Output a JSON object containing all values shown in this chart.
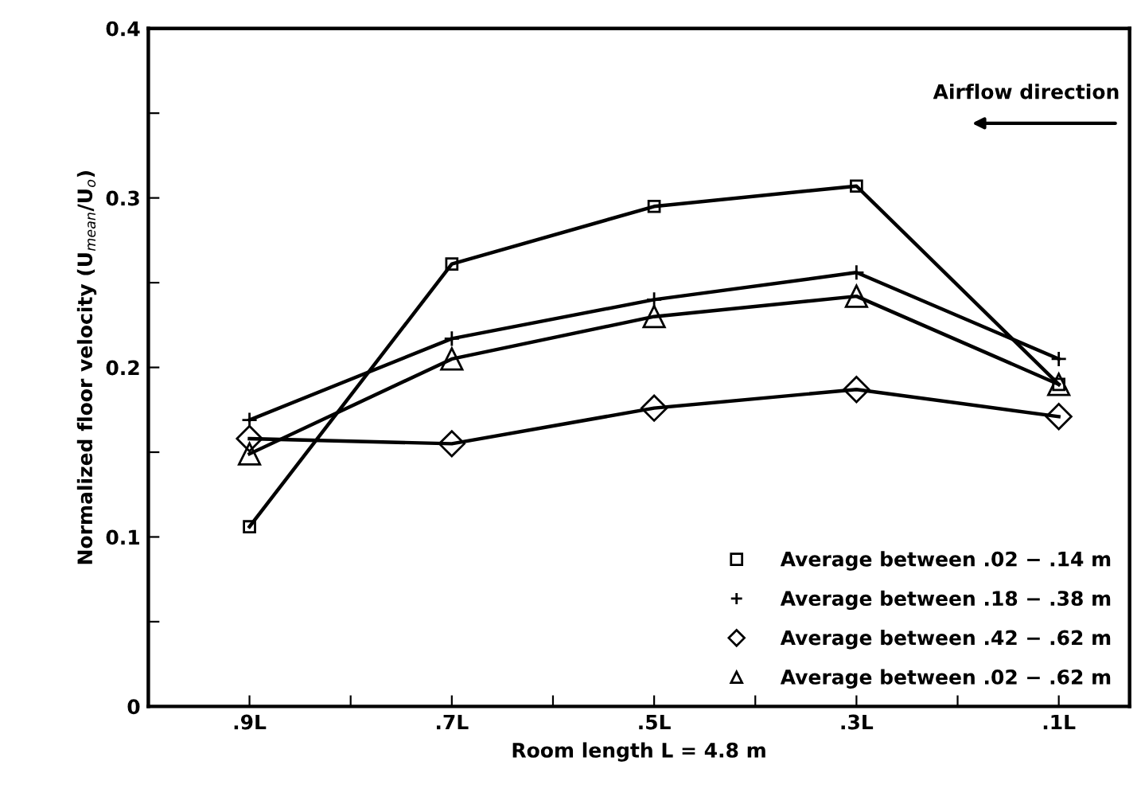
{
  "chart_data": {
    "type": "line",
    "xlabel": "Room length L = 4.8 m",
    "ylabel": "Normalized floor velocity (U$_{mean}$/U$_{o}$)",
    "annotations": [
      "Airflow direction"
    ],
    "x": [
      0.9,
      0.7,
      0.5,
      0.3,
      0.1
    ],
    "xlim": [
      1.0,
      0.03
    ],
    "xticks": [
      {
        "value": 0.9,
        "label": ".9L"
      },
      {
        "value": 0.8,
        "label": null
      },
      {
        "value": 0.7,
        "label": ".7L"
      },
      {
        "value": 0.6,
        "label": null
      },
      {
        "value": 0.5,
        "label": ".5L"
      },
      {
        "value": 0.4,
        "label": null
      },
      {
        "value": 0.3,
        "label": ".3L"
      },
      {
        "value": 0.2,
        "label": null
      },
      {
        "value": 0.1,
        "label": ".1L"
      }
    ],
    "ylim": [
      0,
      0.4
    ],
    "yticks": [
      0,
      {
        "value": 0.05,
        "label": null
      },
      0.1,
      {
        "value": 0.15,
        "label": null
      },
      0.2,
      {
        "value": 0.25,
        "label": null
      },
      0.3,
      {
        "value": 0.35,
        "label": null
      },
      0.4
    ],
    "grid": false,
    "legend": "bottom right",
    "line_style": "solid",
    "series": [
      {
        "name": "Average between .02 − .14 m",
        "color": "#000000",
        "marker": "square",
        "values": [
          0.106,
          0.261,
          0.295,
          0.307,
          0.19
        ]
      },
      {
        "name": "Average between .18 − .38 m",
        "color": "#000000",
        "marker": "cross",
        "values": [
          0.169,
          0.217,
          0.24,
          0.256,
          0.205
        ]
      },
      {
        "name": "Average between .42 − .62 m",
        "color": "#000000",
        "marker": "diamond",
        "values": [
          0.158,
          0.155,
          0.176,
          0.187,
          0.171
        ]
      },
      {
        "name": "Average between .02 − .62 m",
        "color": "#000000",
        "marker": "triangle",
        "values": [
          0.149,
          0.205,
          0.23,
          0.242,
          0.19
        ]
      }
    ]
  }
}
